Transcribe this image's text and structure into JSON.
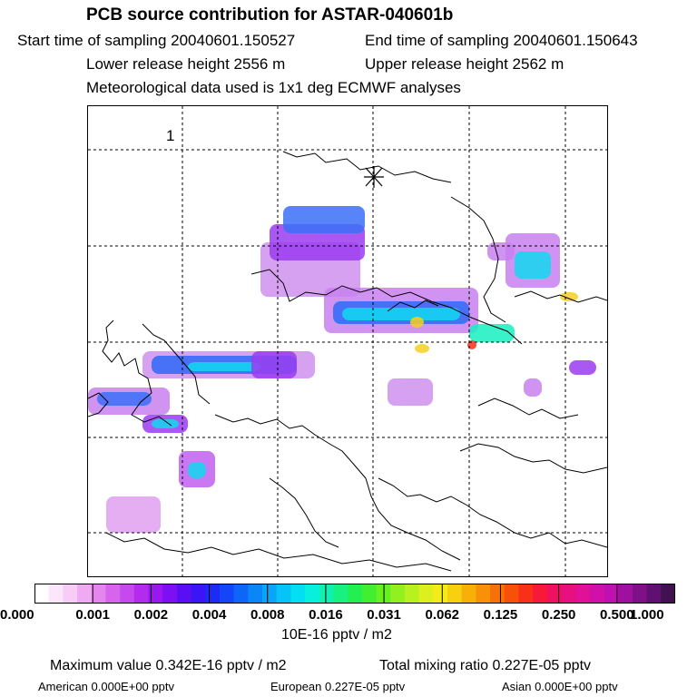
{
  "title": "PCB source contribution for ASTAR-040601b",
  "header": {
    "start": "Start time of sampling 20040601.150527",
    "end": "End time of sampling 20040601.150643",
    "lower": "Lower release height 2556 m",
    "upper": "Upper release height 2562 m",
    "met": "Meteorological data used is 1x1 deg ECMWF analyses"
  },
  "map": {
    "label": "1",
    "marker_icon": "asterisk-icon"
  },
  "legend": {
    "ticks": [
      "0.000",
      "0.001",
      "0.002",
      "0.004",
      "0.008",
      "0.016",
      "0.031",
      "0.062",
      "0.125",
      "0.250",
      "0.500",
      "1.000"
    ],
    "unit": "10E-16 pptv / m2",
    "colors": [
      "#ffffff",
      "#fbe6fb",
      "#f7ccf7",
      "#efaaf2",
      "#e585ee",
      "#d864ee",
      "#c649ee",
      "#b32bef",
      "#9a18f0",
      "#7d10f2",
      "#5a0ef4",
      "#3a16f6",
      "#1e2af6",
      "#1246f8",
      "#0e66f8",
      "#0b86f8",
      "#09a6f8",
      "#06c4f8",
      "#04def2",
      "#08f0dc",
      "#10f0b0",
      "#18f080",
      "#22f050",
      "#40f030",
      "#66f020",
      "#90f020",
      "#b8f020",
      "#dcf020",
      "#f4ec18",
      "#f8d010",
      "#f8b008",
      "#f89008",
      "#f87008",
      "#f85008",
      "#f83018",
      "#f81838",
      "#f01060",
      "#e81080",
      "#e01098",
      "#d010a8",
      "#c010b0",
      "#a010a0",
      "#801088",
      "#601070",
      "#401050"
    ]
  },
  "footer": {
    "max": "Maximum value  0.342E-16 pptv / m2",
    "total": "Total mixing ratio  0.227E-05 pptv",
    "american": "American  0.000E+00 pptv",
    "european": "European  0.227E-05 pptv",
    "asian": "Asian  0.000E+00 pptv"
  }
}
